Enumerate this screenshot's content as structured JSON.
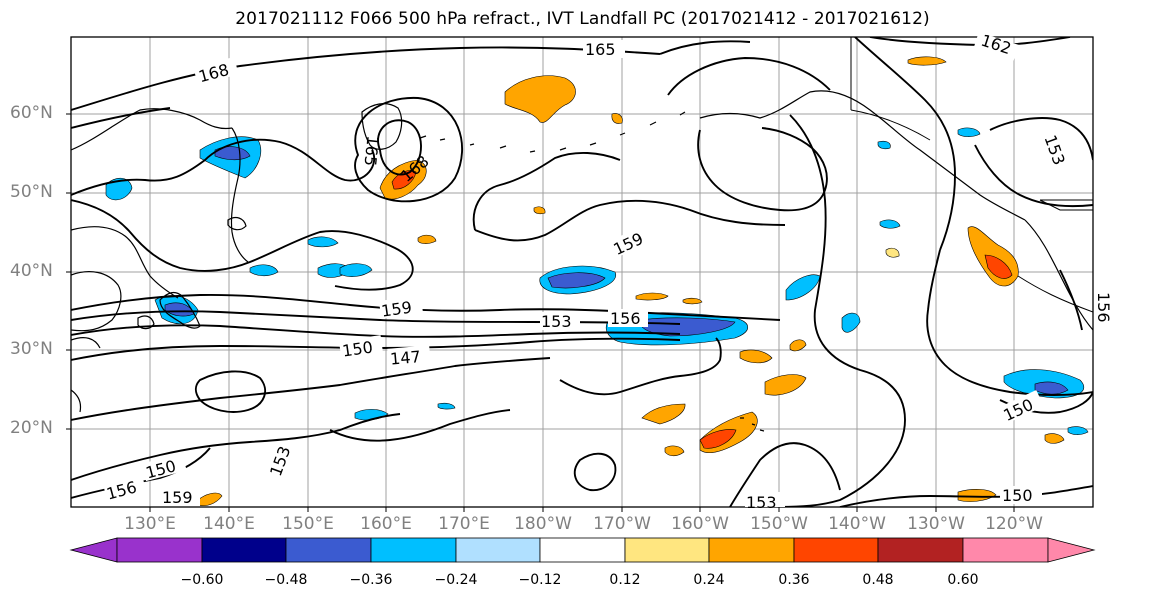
{
  "title": "2017021112 F066 500 hPa refract., IVT Landfall PC (2017021412 - 2017021612)",
  "lat_labels": [
    "60°N",
    "50°N",
    "40°N",
    "30°N",
    "20°N"
  ],
  "lon_labels": [
    "130°E",
    "140°E",
    "150°E",
    "160°E",
    "170°E",
    "180°W",
    "170°W",
    "160°W",
    "150°W",
    "140°W",
    "130°W",
    "120°W"
  ],
  "contour_labels": [
    "165",
    "162",
    "168",
    "165",
    "168",
    "159",
    "153",
    "159",
    "153",
    "156",
    "150",
    "147",
    "156",
    "150",
    "156",
    "159",
    "153",
    "153",
    "150",
    "150"
  ],
  "colorbar": {
    "ticks": [
      "−0.60",
      "−0.48",
      "−0.36",
      "−0.24",
      "−0.12",
      "0.12",
      "0.24",
      "0.36",
      "0.48",
      "0.60"
    ],
    "colors": [
      "#9932cc",
      "#00008b",
      "#3b5bd0",
      "#00bfff",
      "#b0e0ff",
      "#ffffff",
      "#ffe680",
      "#ffa500",
      "#ff4500",
      "#b22222",
      "#ff88aa"
    ]
  },
  "colors": {
    "positive_low": "#ffe680",
    "positive_mid": "#ffa500",
    "positive_high": "#ff4500",
    "negative_low": "#b0e0ff",
    "negative_mid": "#00bfff",
    "negative_high": "#3b5bd0",
    "negative_max": "#00008b",
    "grid": "#a0a0a0",
    "coast": "#000000"
  }
}
